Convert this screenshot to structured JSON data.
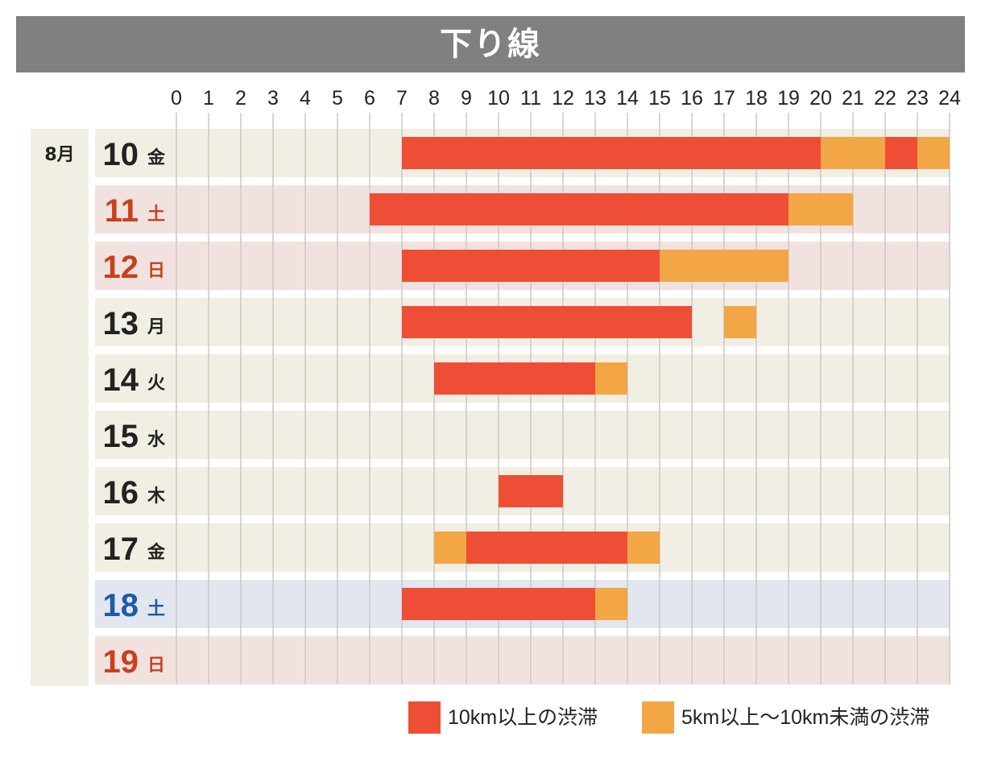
{
  "title": "下り線",
  "month_label": "8月",
  "colors": {
    "title_bg": "#808080",
    "heavy": "#ee4e35",
    "light": "#f2a646",
    "weekday_row": "#f1eee3",
    "holiday_row": "#f2e2df",
    "saturday_row": "#e2e6ee",
    "weekday_text": "#222222",
    "holiday_text": "#c8401e",
    "saturday_text": "#1f5aa8",
    "grid": "#c9c9c9"
  },
  "chart_data": {
    "type": "gantt",
    "title": "下り線",
    "x_range": [
      0,
      24
    ],
    "x_ticks": [
      "0",
      "1",
      "2",
      "3",
      "4",
      "5",
      "6",
      "7",
      "8",
      "9",
      "10",
      "11",
      "12",
      "13",
      "14",
      "15",
      "16",
      "17",
      "18",
      "19",
      "20",
      "21",
      "22",
      "23",
      "24"
    ],
    "categories": {
      "heavy": "10km以上の渋滞",
      "light": "5km以上〜10km未満の渋滞"
    },
    "rows": [
      {
        "day": "10",
        "weekday": "金",
        "type": "weekday",
        "segments": [
          {
            "start": 7,
            "end": 20,
            "category": "heavy"
          },
          {
            "start": 20,
            "end": 22,
            "category": "light"
          },
          {
            "start": 22,
            "end": 23,
            "category": "heavy"
          },
          {
            "start": 23,
            "end": 24,
            "category": "light"
          }
        ]
      },
      {
        "day": "11",
        "weekday": "土",
        "type": "holiday",
        "segments": [
          {
            "start": 6,
            "end": 19,
            "category": "heavy"
          },
          {
            "start": 19,
            "end": 21,
            "category": "light"
          }
        ]
      },
      {
        "day": "12",
        "weekday": "日",
        "type": "holiday",
        "segments": [
          {
            "start": 7,
            "end": 15,
            "category": "heavy"
          },
          {
            "start": 15,
            "end": 19,
            "category": "light"
          }
        ]
      },
      {
        "day": "13",
        "weekday": "月",
        "type": "weekday",
        "segments": [
          {
            "start": 7,
            "end": 16,
            "category": "heavy"
          },
          {
            "start": 17,
            "end": 18,
            "category": "light"
          }
        ]
      },
      {
        "day": "14",
        "weekday": "火",
        "type": "weekday",
        "segments": [
          {
            "start": 8,
            "end": 13,
            "category": "heavy"
          },
          {
            "start": 13,
            "end": 14,
            "category": "light"
          }
        ]
      },
      {
        "day": "15",
        "weekday": "水",
        "type": "weekday",
        "segments": []
      },
      {
        "day": "16",
        "weekday": "木",
        "type": "weekday",
        "segments": [
          {
            "start": 10,
            "end": 12,
            "category": "heavy"
          }
        ]
      },
      {
        "day": "17",
        "weekday": "金",
        "type": "weekday",
        "segments": [
          {
            "start": 8,
            "end": 9,
            "category": "light"
          },
          {
            "start": 9,
            "end": 14,
            "category": "heavy"
          },
          {
            "start": 14,
            "end": 15,
            "category": "light"
          }
        ]
      },
      {
        "day": "18",
        "weekday": "土",
        "type": "saturday",
        "segments": [
          {
            "start": 7,
            "end": 13,
            "category": "heavy"
          },
          {
            "start": 13,
            "end": 14,
            "category": "light"
          }
        ]
      },
      {
        "day": "19",
        "weekday": "日",
        "type": "holiday",
        "segments": []
      }
    ]
  },
  "legend": [
    {
      "label": "10km以上の渋滞",
      "category": "heavy"
    },
    {
      "label": "5km以上〜10km未満の渋滞",
      "category": "light"
    }
  ]
}
